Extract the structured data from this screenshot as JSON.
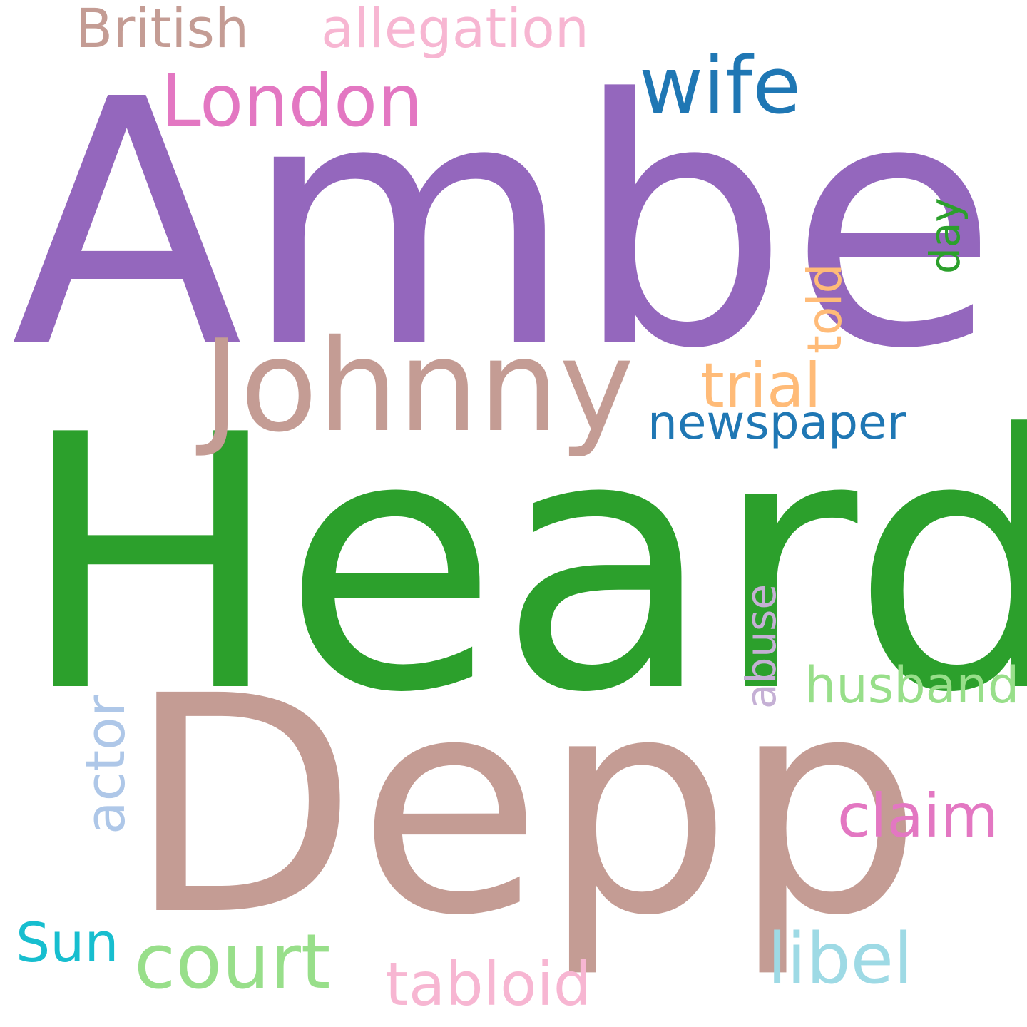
{
  "words": {
    "amber": {
      "text": "Amber",
      "color": "#9467bd"
    },
    "heard": {
      "text": "Heard",
      "color": "#2ca02c"
    },
    "depp": {
      "text": "Depp",
      "color": "#c49c94"
    },
    "johnny": {
      "text": "Johnny",
      "color": "#c49c94"
    },
    "wife": {
      "text": "wife",
      "color": "#1f77b4"
    },
    "london": {
      "text": "London",
      "color": "#e377c2"
    },
    "british": {
      "text": "British",
      "color": "#c49c94"
    },
    "allegation": {
      "text": "allegation",
      "color": "#f7b6d2"
    },
    "trial": {
      "text": "trial",
      "color": "#ffbb78"
    },
    "told": {
      "text": "told",
      "color": "#ffbb78"
    },
    "day": {
      "text": "day",
      "color": "#2ca02c"
    },
    "newspaper": {
      "text": "newspaper",
      "color": "#1f77b4"
    },
    "abuse": {
      "text": "abuse",
      "color": "#c5b0d5"
    },
    "husband": {
      "text": "husband",
      "color": "#98df8a"
    },
    "actor": {
      "text": "actor",
      "color": "#aec7e8"
    },
    "claim": {
      "text": "claim",
      "color": "#e377c2"
    },
    "sun": {
      "text": "Sun",
      "color": "#17becf"
    },
    "court": {
      "text": "court",
      "color": "#98df8a"
    },
    "tabloid": {
      "text": "tabloid",
      "color": "#f7b6d2"
    },
    "libel": {
      "text": "libel",
      "color": "#9edae5"
    }
  }
}
